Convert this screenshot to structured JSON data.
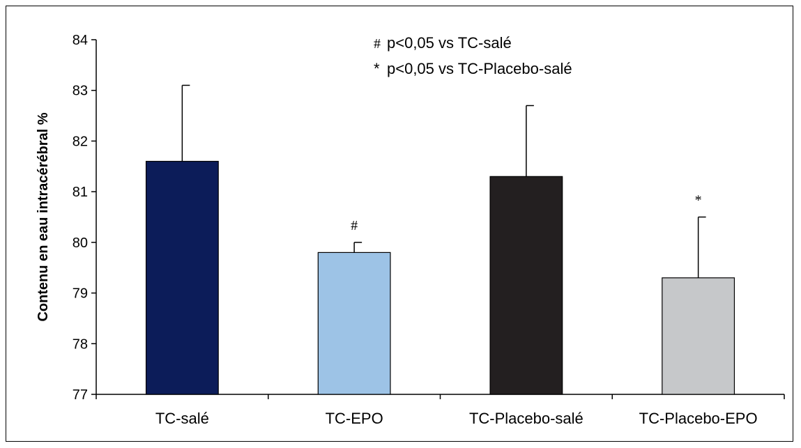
{
  "chart_data": {
    "type": "bar",
    "categories": [
      "TC-salé",
      "TC-EPO",
      "TC-Placebo-salé",
      "TC-Placebo-EPO"
    ],
    "values": [
      81.6,
      79.8,
      81.3,
      79.3
    ],
    "errors": [
      1.5,
      0.2,
      1.4,
      1.2
    ],
    "markers": [
      "",
      "#",
      "",
      "*"
    ],
    "colors": [
      "#0c1c59",
      "#9dc3e6",
      "#231f20",
      "#c6c8ca"
    ],
    "ylabel": "Contenu en eau intracérébral %",
    "ylim": [
      77,
      84
    ],
    "yticks": [
      77,
      78,
      79,
      80,
      81,
      82,
      83,
      84
    ],
    "legend": [
      {
        "symbol": "#",
        "text": "p<0,05 vs TC-salé"
      },
      {
        "symbol": "*",
        "text": "p<0,05 vs TC-Placebo-salé"
      }
    ],
    "grid": false
  }
}
